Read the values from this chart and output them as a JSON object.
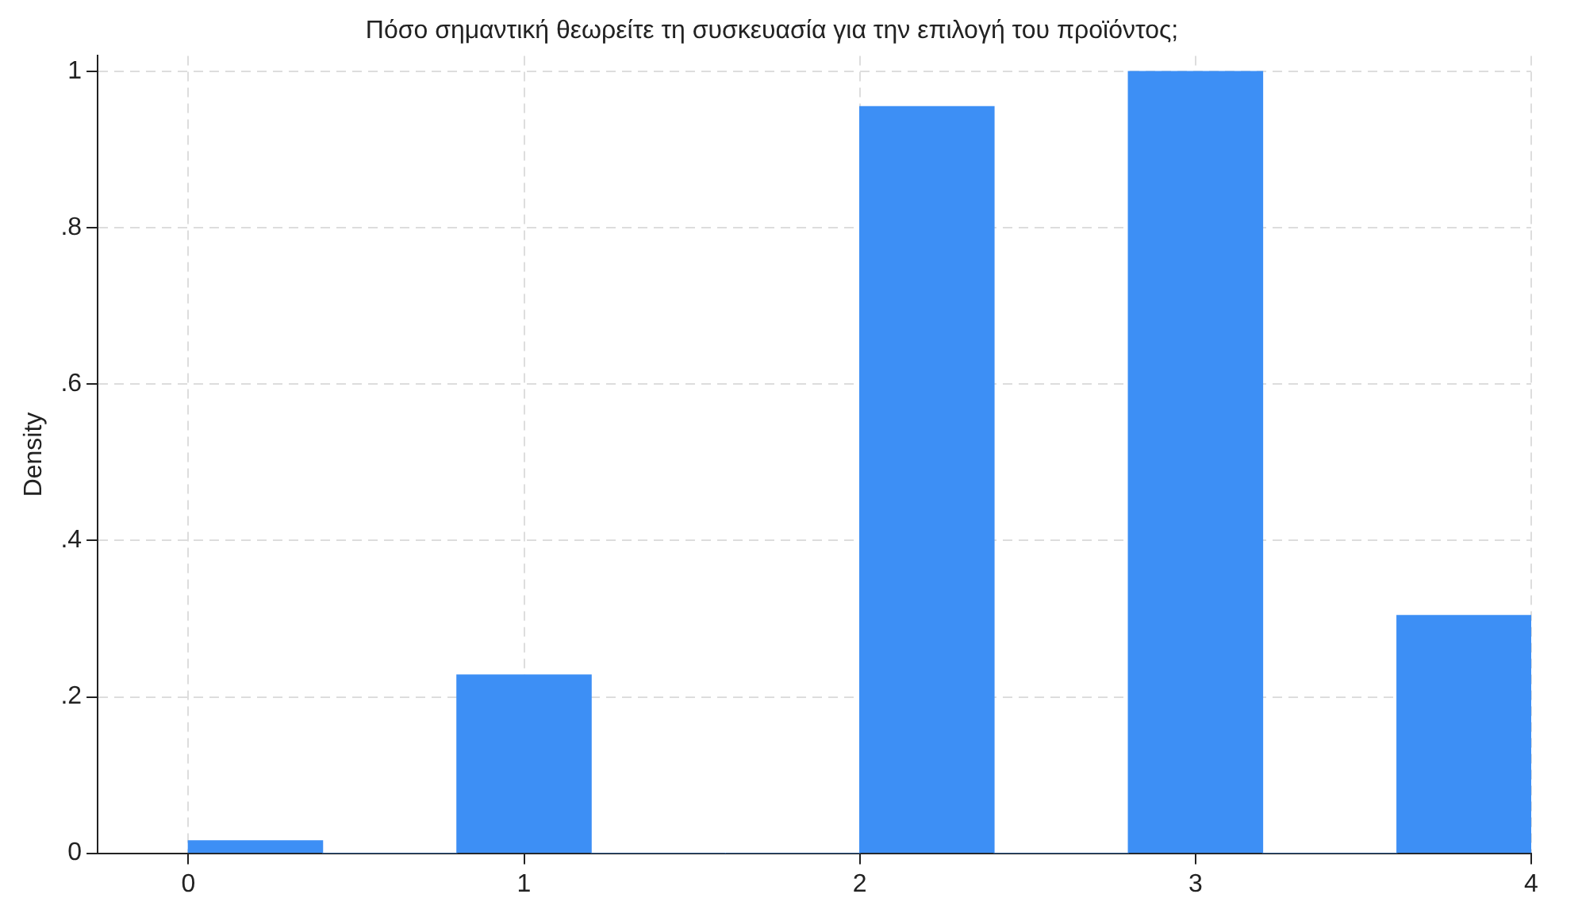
{
  "chart_data": {
    "type": "histogram",
    "title": "Πόσο σημαντική θεωρείτε τη συσκευασία για την επιλογή του προϊόντος;",
    "ylabel": "Density",
    "bins": [
      0,
      0.4,
      0.8,
      1.2,
      1.6,
      2.0,
      2.4,
      2.8,
      3.2,
      3.6,
      4.0
    ],
    "values": [
      0.016,
      0,
      0.228,
      0,
      0,
      0.955,
      0,
      1.0,
      0,
      0.304
    ],
    "color": "#3d8ff5",
    "xlim": [
      -0.27,
      4
    ],
    "xticks": [
      0,
      1,
      2,
      3,
      4
    ],
    "ylim": [
      0,
      1.02
    ],
    "yticks": [
      0,
      {
        "value": 0.2,
        "label": ".2"
      },
      {
        "value": 0.4,
        "label": ".4"
      },
      {
        "value": 0.6,
        "label": ".6"
      },
      {
        "value": 0.8,
        "label": ".8"
      },
      1
    ],
    "grid": true,
    "legend": false
  }
}
